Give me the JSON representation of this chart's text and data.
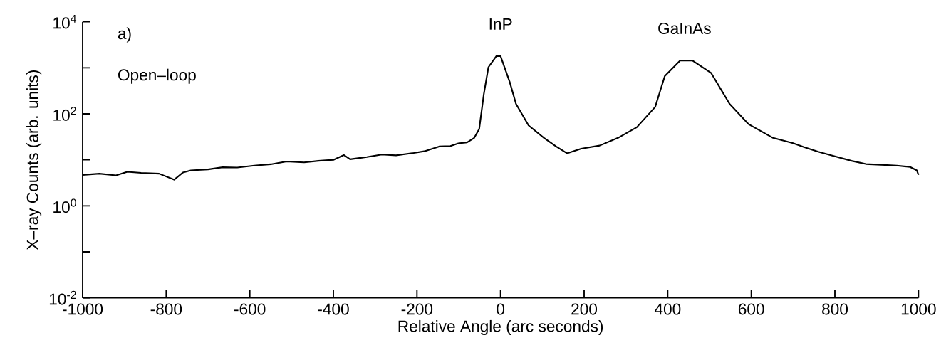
{
  "chart_data": {
    "type": "line",
    "xlabel": "Relative Angle (arc seconds)",
    "ylabel": "X–ray Counts (arb. units)",
    "annotations": [
      "a)",
      "Open–loop",
      {
        "text": "InP",
        "x": 0,
        "y": 1800
      },
      {
        "text": "GaInAs",
        "x": 440,
        "y": 1440
      }
    ],
    "x": [
      -1000,
      -960,
      -920,
      -893,
      -860,
      -817,
      -781,
      -760,
      -741,
      -700,
      -665,
      -630,
      -589,
      -550,
      -512,
      -470,
      -436,
      -400,
      -375,
      -360,
      -320,
      -284,
      -250,
      -208,
      -180,
      -147,
      -120,
      -101,
      -80,
      -63,
      -51,
      -40,
      -29,
      -10,
      0,
      22,
      37,
      67,
      104,
      133,
      159,
      193,
      237,
      281,
      326,
      370,
      393,
      430,
      459,
      504,
      548,
      593,
      652,
      700,
      726,
      760,
      800,
      840,
      874,
      910,
      948,
      980,
      996,
      1000
    ],
    "series": [
      {
        "color": "#000000",
        "values": [
          4.7,
          5.0,
          4.6,
          5.5,
          5.2,
          5.0,
          3.7,
          5.3,
          5.9,
          6.2,
          6.9,
          6.8,
          7.5,
          8.0,
          9.2,
          8.8,
          9.5,
          10.0,
          12.7,
          10.3,
          11.5,
          13,
          12.5,
          14.1,
          15.5,
          19.5,
          20,
          22.8,
          24,
          30,
          47,
          268,
          1030,
          1800,
          1800,
          490,
          165,
          56,
          30,
          19.5,
          13.9,
          17.5,
          20.4,
          30,
          51,
          141,
          660,
          1440,
          1440,
          770,
          165,
          60,
          30,
          23,
          19,
          15,
          11.9,
          9.5,
          8.1,
          7.8,
          7.5,
          7.0,
          5.9,
          4.7
        ]
      }
    ],
    "xlim": [
      -1000,
      1000
    ],
    "ylim": [
      0.01,
      10000
    ],
    "log": "y",
    "xticks": [
      -1000,
      -800,
      -600,
      -400,
      -200,
      0,
      200,
      400,
      600,
      800,
      1000
    ],
    "yticks": [
      {
        "value": 0.01,
        "label": "10$^{-2}$"
      },
      {
        "value": 0.1,
        "label": null
      },
      {
        "value": 1,
        "label": "10$^{0}$"
      },
      {
        "value": 10,
        "label": null
      },
      {
        "value": 100,
        "label": "10$^{2}$"
      },
      {
        "value": 1000,
        "label": null
      },
      {
        "value": 10000,
        "label": "10$^{4}$"
      }
    ],
    "marker": "none",
    "line_style": "solid"
  }
}
